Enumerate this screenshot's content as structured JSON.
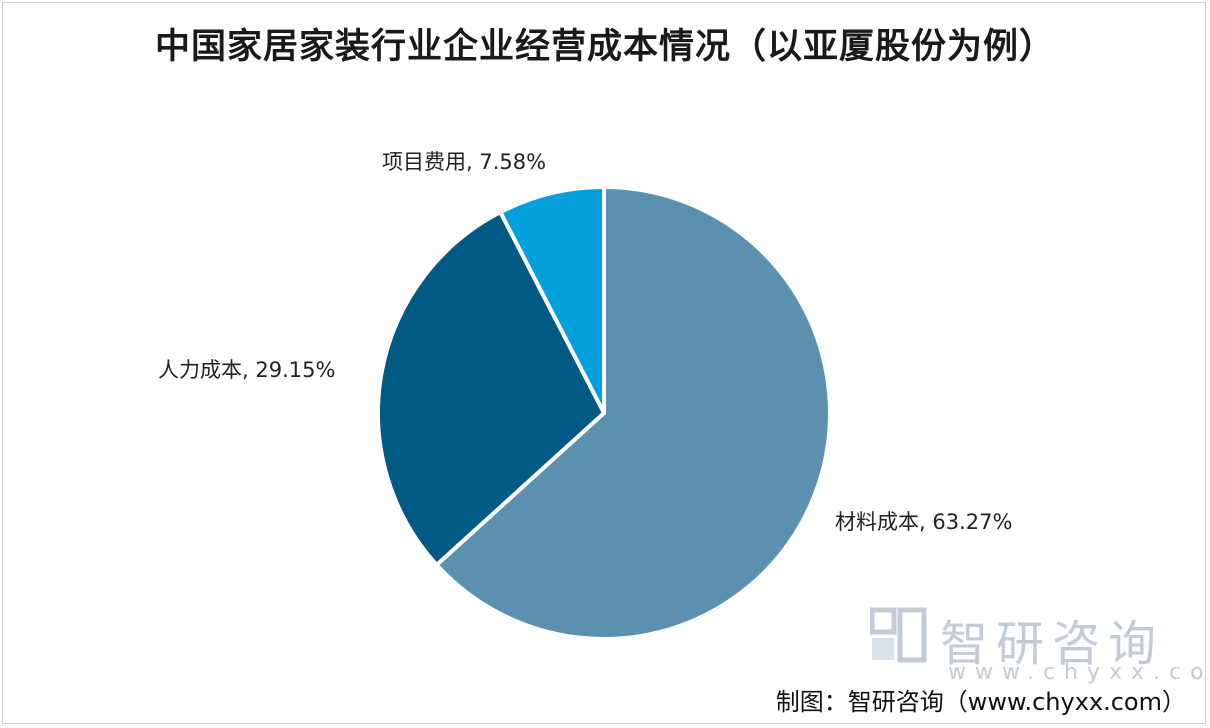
{
  "chart_data": {
    "type": "pie",
    "title": "中国家居家装行业企业经营成本情况（以亚厦股份为例）",
    "slices": [
      {
        "name": "材料成本",
        "value": 63.27,
        "label": "材料成本, 63.27%",
        "color": "#5b90b0"
      },
      {
        "name": "人力成本",
        "value": 29.15,
        "label": "人力成本, 29.15%",
        "color": "#005a84"
      },
      {
        "name": "项目费用",
        "value": 7.58,
        "label": "项目费用, 7.58%",
        "color": "#04a0db"
      }
    ],
    "unit": "%"
  },
  "watermark": {
    "name": "智研咨询",
    "url": "www.chyxx.com",
    "logo_icon": "chyxx-logo-icon"
  },
  "source": "制图：智研咨询（www.chyxx.com）"
}
